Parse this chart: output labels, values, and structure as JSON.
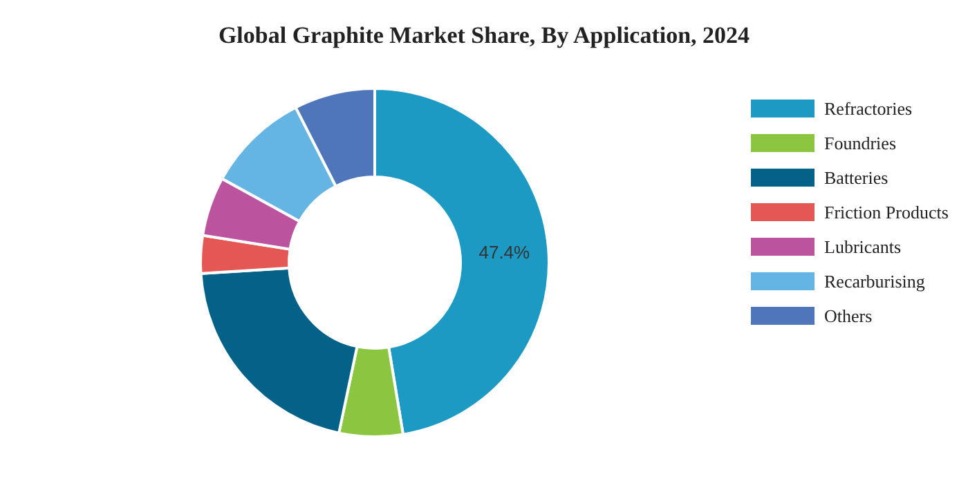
{
  "chart_data": {
    "type": "donut",
    "title": "Global Graphite Market Share, By Application, 2024",
    "categories": [
      "Refractories",
      "Foundries",
      "Batteries",
      "Friction Products",
      "Lubricants",
      "Recarburising",
      "Others"
    ],
    "values": [
      47.4,
      5.9,
      20.7,
      3.5,
      5.5,
      9.5,
      7.5
    ],
    "colors": [
      "#1c9ac3",
      "#8cc540",
      "#046188",
      "#e45755",
      "#bc539e",
      "#64b4e4",
      "#4f76ba"
    ],
    "value_labels": [
      "47.4%",
      null,
      null,
      null,
      null,
      null,
      null
    ],
    "legend": "right"
  }
}
